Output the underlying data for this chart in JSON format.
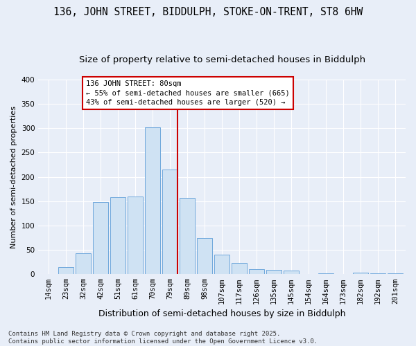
{
  "title1": "136, JOHN STREET, BIDDULPH, STOKE-ON-TRENT, ST8 6HW",
  "title2": "Size of property relative to semi-detached houses in Biddulph",
  "xlabel": "Distribution of semi-detached houses by size in Biddulph",
  "ylabel": "Number of semi-detached properties",
  "categories": [
    "14sqm",
    "23sqm",
    "32sqm",
    "42sqm",
    "51sqm",
    "61sqm",
    "70sqm",
    "79sqm",
    "89sqm",
    "98sqm",
    "107sqm",
    "117sqm",
    "126sqm",
    "135sqm",
    "145sqm",
    "154sqm",
    "164sqm",
    "173sqm",
    "182sqm",
    "192sqm",
    "201sqm"
  ],
  "values": [
    0,
    15,
    43,
    148,
    158,
    160,
    302,
    215,
    157,
    75,
    40,
    23,
    10,
    9,
    8,
    0,
    2,
    0,
    3,
    2,
    2
  ],
  "bar_color": "#cfe2f3",
  "bar_edge_color": "#6fa8dc",
  "bg_color": "#e8eef8",
  "grid_color": "#ffffff",
  "vline_color": "#cc0000",
  "annotation_title": "136 JOHN STREET: 80sqm",
  "annotation_line1": "← 55% of semi-detached houses are smaller (665)",
  "annotation_line2": "43% of semi-detached houses are larger (520) →",
  "annotation_box_color": "#ffffff",
  "annotation_box_edge": "#cc0000",
  "footer1": "Contains HM Land Registry data © Crown copyright and database right 2025.",
  "footer2": "Contains public sector information licensed under the Open Government Licence v3.0.",
  "ylim": [
    0,
    400
  ],
  "yticks": [
    0,
    50,
    100,
    150,
    200,
    250,
    300,
    350,
    400
  ],
  "title1_fontsize": 10.5,
  "title2_fontsize": 9.5,
  "xlabel_fontsize": 9,
  "ylabel_fontsize": 8,
  "tick_fontsize": 7.5,
  "footer_fontsize": 6.5,
  "ann_fontsize": 7.5
}
